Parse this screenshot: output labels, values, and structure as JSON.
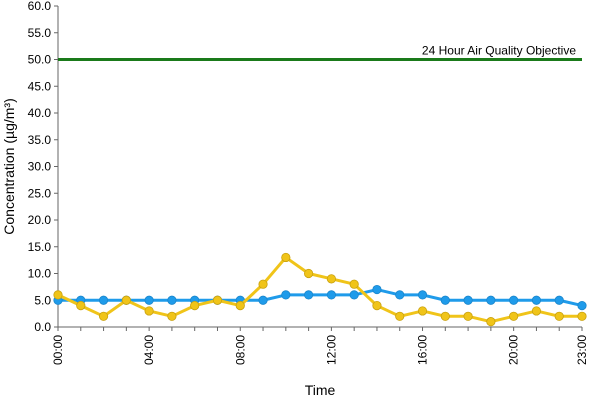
{
  "chart_data": {
    "type": "line",
    "title": "",
    "xlabel": "Time",
    "ylabel": "Concentration (µg/m³)",
    "ylim": [
      0,
      60
    ],
    "ytick_step": 5,
    "ytick_labels": [
      "0.0",
      "5.0",
      "10.0",
      "15.0",
      "20.0",
      "25.0",
      "30.0",
      "35.0",
      "40.0",
      "45.0",
      "50.0",
      "55.0",
      "60.0"
    ],
    "x": [
      "00:00",
      "01:00",
      "02:00",
      "03:00",
      "04:00",
      "05:00",
      "06:00",
      "07:00",
      "08:00",
      "09:00",
      "10:00",
      "11:00",
      "12:00",
      "13:00",
      "14:00",
      "15:00",
      "16:00",
      "17:00",
      "18:00",
      "19:00",
      "20:00",
      "21:00",
      "22:00",
      "23:00"
    ],
    "xtick_labels": [
      "00:00",
      "04:00",
      "08:00",
      "12:00",
      "16:00",
      "20:00",
      "23:00"
    ],
    "xtick_indices": [
      0,
      4,
      8,
      12,
      16,
      20,
      23
    ],
    "grid": false,
    "series": [
      {
        "color": "#1f9bea",
        "values": [
          5,
          5,
          5,
          5,
          5,
          5,
          5,
          5,
          5,
          5,
          6,
          6,
          6,
          6,
          7,
          6,
          6,
          5,
          5,
          5,
          5,
          5,
          5,
          4
        ]
      },
      {
        "color": "#f0c419",
        "values": [
          6,
          4,
          2,
          5,
          3,
          2,
          4,
          5,
          4,
          8,
          13,
          10,
          9,
          8,
          4,
          2,
          3,
          2,
          2,
          1,
          2,
          3,
          2,
          2
        ]
      }
    ],
    "reference_line": {
      "value": 50,
      "label": "24 Hour Air Quality Objective",
      "color": "#1a7a1a"
    }
  }
}
